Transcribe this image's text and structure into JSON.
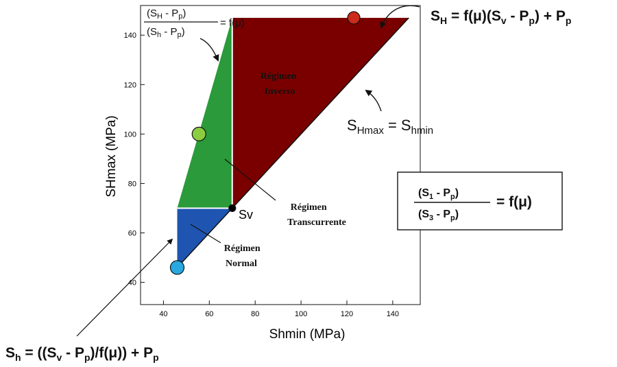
{
  "axes": {
    "xlabel": "Shmin (MPa)",
    "ylabel": "SHmax (MPa)",
    "xlim": [
      30,
      152
    ],
    "ylim": [
      31,
      152
    ],
    "xticks": [
      40,
      60,
      80,
      100,
      120,
      140
    ],
    "yticks": [
      40,
      60,
      80,
      100,
      120,
      140
    ]
  },
  "colors": {
    "inverso": "#7a0000",
    "transcurrente": "#2a9a3a",
    "normal": "#1f55b0",
    "dot_red": "#cc2a1a",
    "dot_green": "#8ccc40",
    "dot_blue": "#2aa8e0",
    "line": "#111111"
  },
  "points": {
    "sv": {
      "x": 70,
      "y": 70
    },
    "apex_left": {
      "x": 46,
      "y": 46
    },
    "corner_normal": {
      "x": 46,
      "y": 70
    },
    "green_top": {
      "x": 70,
      "y": 147
    },
    "red_right": {
      "x": 147,
      "y": 147
    },
    "dot_red": {
      "x": 123,
      "y": 147
    },
    "dot_green": {
      "x": 55.5,
      "y": 100
    },
    "dot_blue": {
      "x": 46,
      "y": 46
    }
  },
  "labels": {
    "sv": "Sv",
    "inverso_line1": "Régimen",
    "inverso_line2": "Inverso",
    "transc_line1": "Régimen",
    "transc_line2": "Transcurrente",
    "normal_line1": "Régimen",
    "normal_line2": "Normal",
    "top_frac_num": "(S",
    "top_frac_num_sub": "H",
    "top_frac_num_mid": " - P",
    "top_frac_num_sub2": "p",
    "top_frac_num_end": ")",
    "top_frac_den": "(S",
    "top_frac_den_sub": "h",
    "top_frac_den_mid": " - P",
    "top_frac_den_sub2": "p",
    "top_frac_den_end": ")",
    "top_frac_eq": "= f(μ)",
    "shmax_eq_a": "S",
    "shmax_eq_a_sub": "Hmax",
    "shmax_eq_b": " = S",
    "shmax_eq_b_sub": "hmin",
    "eqH_a": "S",
    "eqH_a_sub": "H",
    "eqH_b": " = f(μ)(S",
    "eqH_b_sub": "v",
    "eqH_c": " - P",
    "eqH_c_sub": "p",
    "eqH_d": ") + P",
    "eqH_d_sub": "p",
    "eqh_a": "S",
    "eqh_a_sub": "h",
    "eqh_b": " = ((S",
    "eqh_b_sub": "v",
    "eqh_c": " - P",
    "eqh_c_sub": "p",
    "eqh_d": ")/f(μ)) + P",
    "eqh_d_sub": "p",
    "box_num_a": "(S",
    "box_num_a_sub": "1",
    "box_num_b": " - P",
    "box_num_b_sub": "p",
    "box_num_c": ")",
    "box_den_a": "(S",
    "box_den_a_sub": "3",
    "box_den_b": " - P",
    "box_den_b_sub": "p",
    "box_den_c": ")",
    "box_eq": "= f(μ)"
  }
}
